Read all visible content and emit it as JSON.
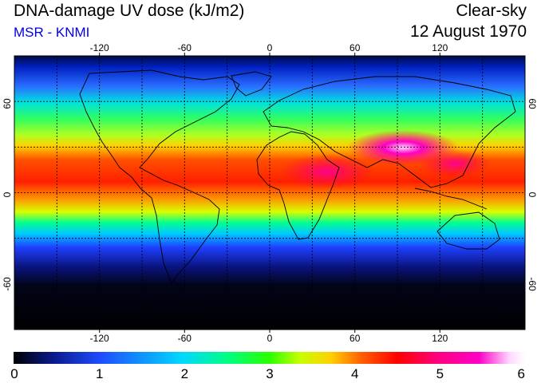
{
  "header": {
    "title": "DNA-damage UV dose (kJ/m2)",
    "subtitle": "MSR - KNMI",
    "sky": "Clear-sky",
    "date": "12 August 1970"
  },
  "map": {
    "projection": "equirectangular",
    "lon_range": [
      -180,
      180
    ],
    "lat_range": [
      -90,
      90
    ],
    "lon_ticks": [
      "-120",
      "-60",
      "0",
      "60",
      "120"
    ],
    "lat_ticks": [
      "60",
      "0",
      "-60"
    ],
    "gridlines": "dashed, every 30 degrees"
  },
  "colorbar": {
    "ticks": [
      "0",
      "1",
      "2",
      "3",
      "4",
      "5",
      "6"
    ],
    "stops": [
      "#000000",
      "#0a1a8f",
      "#1f4dff",
      "#00d8ff",
      "#00ff80",
      "#2aff00",
      "#c8ff00",
      "#ffd000",
      "#ff6000",
      "#ff0000",
      "#ff0080",
      "#ff00c8",
      "#ffd8ff",
      "#ffffff"
    ]
  }
}
